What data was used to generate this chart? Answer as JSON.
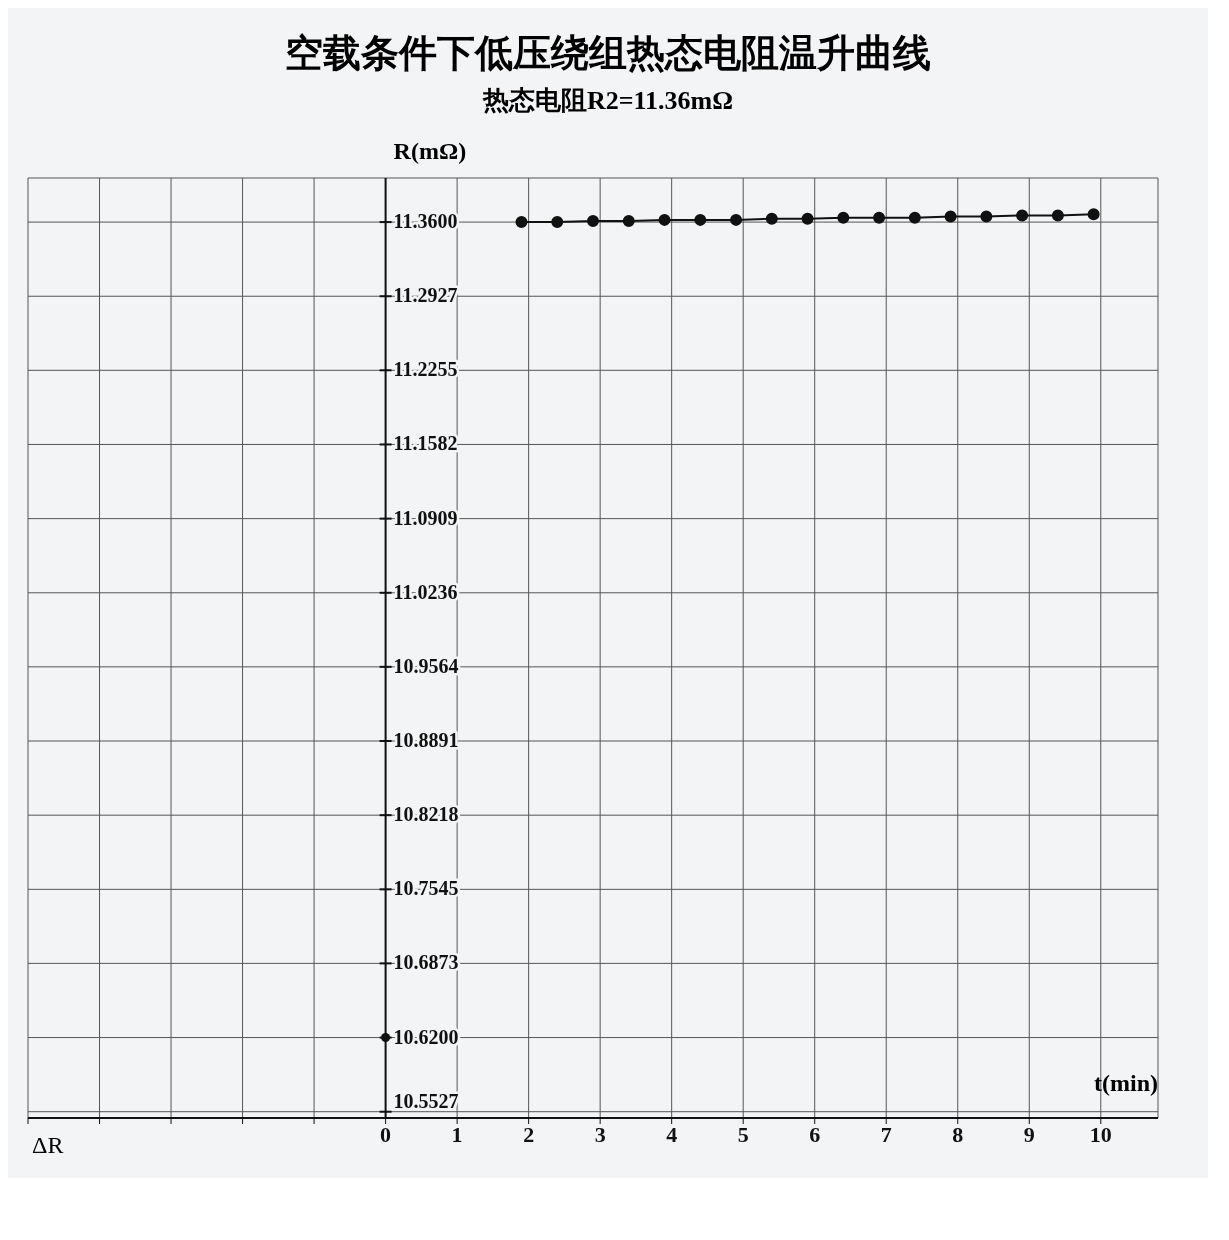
{
  "chart_data": {
    "type": "line",
    "title": "空载条件下低压绕组热态电阻温升曲线",
    "subtitle": "热态电阻R2=11.36mΩ",
    "xlabel": "t(min)",
    "ylabel": "R(mΩ)",
    "annotations": [
      "ΔR"
    ],
    "xlim": [
      -5,
      10.8
    ],
    "xticks": [
      {
        "value": -5,
        "label": null
      },
      {
        "value": -4,
        "label": null
      },
      {
        "value": -3,
        "label": null
      },
      {
        "value": -2,
        "label": null
      },
      {
        "value": -1,
        "label": null
      },
      0,
      1,
      2,
      3,
      4,
      5,
      6,
      7,
      8,
      9,
      10
    ],
    "ylim": [
      10.547,
      11.4
    ],
    "yticks": [
      {
        "value": 10.5527,
        "label": "10.5527"
      },
      {
        "value": 10.62,
        "label": "10.6200"
      },
      {
        "value": 10.6873,
        "label": "10.6873"
      },
      {
        "value": 10.7545,
        "label": "10.7545"
      },
      {
        "value": 10.8218,
        "label": "10.8218"
      },
      {
        "value": 10.8891,
        "label": "10.8891"
      },
      {
        "value": 10.9564,
        "label": "10.9564"
      },
      {
        "value": 11.0236,
        "label": "11.0236"
      },
      {
        "value": 11.0909,
        "label": "11.0909"
      },
      {
        "value": 11.1582,
        "label": "11.1582"
      },
      {
        "value": 11.2255,
        "label": "11.2255"
      },
      {
        "value": 11.2927,
        "label": "11.2927"
      },
      {
        "value": 11.36,
        "label": "11.3600"
      }
    ],
    "grid": true,
    "marker": "circle",
    "line_style": "solid",
    "series": [
      {
        "type": "scatter",
        "color": "#111111",
        "x": [
          0
        ],
        "values": [
          10.62
        ]
      },
      {
        "type": "line",
        "color": "#111111",
        "x": [
          1.9,
          2.4,
          2.9,
          3.4,
          3.9,
          4.4,
          4.9,
          5.4,
          5.9,
          6.4,
          6.9,
          7.4,
          7.9,
          8.4,
          8.9,
          9.4,
          9.9
        ],
        "values": [
          11.36,
          11.36,
          11.361,
          11.361,
          11.362,
          11.362,
          11.362,
          11.363,
          11.363,
          11.364,
          11.364,
          11.364,
          11.365,
          11.365,
          11.366,
          11.366,
          11.367
        ]
      }
    ]
  }
}
